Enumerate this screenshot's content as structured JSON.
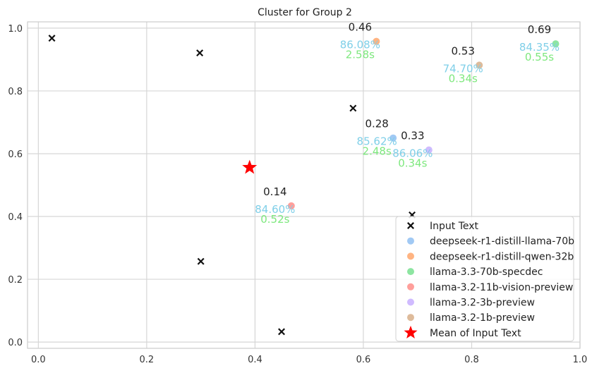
{
  "chart_data": {
    "type": "scatter",
    "title": "Cluster for Group 2",
    "xlim": [
      -0.02,
      1.0
    ],
    "ylim": [
      -0.02,
      1.02
    ],
    "xticks": [
      0.0,
      0.2,
      0.4,
      0.6,
      0.8,
      1.0
    ],
    "yticks": [
      0.0,
      0.2,
      0.4,
      0.6,
      0.8,
      1.0
    ],
    "xtick_labels": [
      "0.0",
      "0.2",
      "0.4",
      "0.6",
      "0.8",
      "1.0"
    ],
    "ytick_labels": [
      "0.0",
      "0.2",
      "0.4",
      "0.6",
      "0.8",
      "1.0"
    ],
    "grid": true,
    "legend_position": "lower-right",
    "input_text": {
      "name": "Input Text",
      "marker": "x",
      "color": "#111111",
      "points": [
        {
          "x": 0.025,
          "y": 0.968
        },
        {
          "x": 0.298,
          "y": 0.921
        },
        {
          "x": 0.581,
          "y": 0.745
        },
        {
          "x": 0.69,
          "y": 0.405
        },
        {
          "x": 0.3,
          "y": 0.257
        },
        {
          "x": 0.449,
          "y": 0.033
        }
      ]
    },
    "models": [
      {
        "name": "deepseek-r1-distill-llama-70b",
        "color": "#a1c9f4",
        "x": 0.655,
        "y": 0.65,
        "score": "0.28",
        "accuracy": "85.62%",
        "time": "2.48s"
      },
      {
        "name": "deepseek-r1-distill-qwen-32b",
        "color": "#ffb482",
        "x": 0.624,
        "y": 0.958,
        "score": "0.46",
        "accuracy": "86.08%",
        "time": "2.58s"
      },
      {
        "name": "llama-3.3-70b-specdec",
        "color": "#8de5a1",
        "x": 0.955,
        "y": 0.95,
        "score": "0.69",
        "accuracy": "84.35%",
        "time": "0.55s"
      },
      {
        "name": "llama-3.2-11b-vision-preview",
        "color": "#ff9f9b",
        "x": 0.467,
        "y": 0.434,
        "score": "0.14",
        "accuracy": "84.60%",
        "time": "0.52s"
      },
      {
        "name": "llama-3.2-3b-preview",
        "color": "#d0bbff",
        "x": 0.721,
        "y": 0.612,
        "score": "0.33",
        "accuracy": "86.06%",
        "time": "0.34s"
      },
      {
        "name": "llama-3.2-1b-preview",
        "color": "#debb9b",
        "x": 0.814,
        "y": 0.882,
        "score": "0.53",
        "accuracy": "74.70%",
        "time": "0.34s"
      }
    ],
    "mean": {
      "name": "Mean of Input Text",
      "marker": "star",
      "color": "#ff0000",
      "x": 0.39,
      "y": 0.556
    },
    "annotation_colors": {
      "accuracy": "#7fcfe8",
      "time": "#7ee87e"
    }
  }
}
